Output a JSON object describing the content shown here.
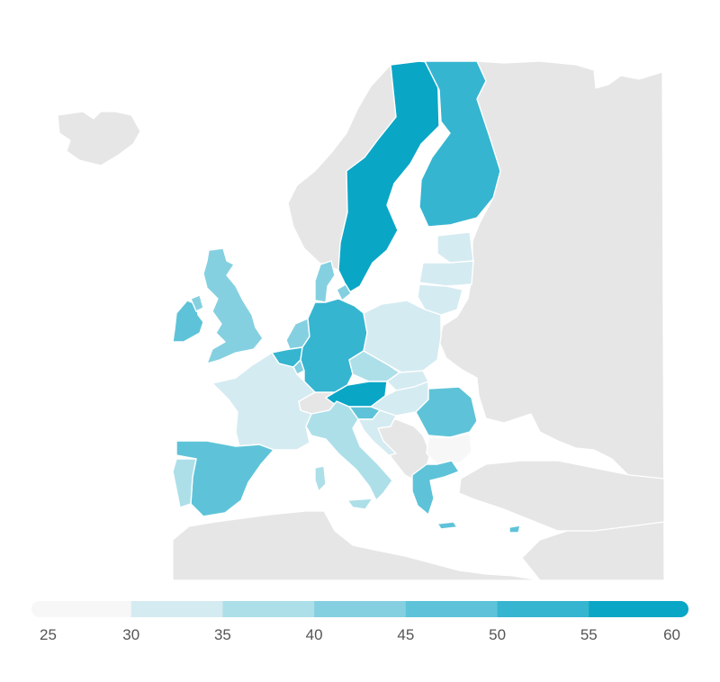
{
  "map": {
    "region": "Europe",
    "background_land_color": "#e6e6e6",
    "border_color": "#ffffff",
    "countries": [
      {
        "name": "Sweden",
        "value": 57
      },
      {
        "name": "Finland",
        "value": 53
      },
      {
        "name": "Norway",
        "value": null
      },
      {
        "name": "Iceland",
        "value": null
      },
      {
        "name": "Estonia",
        "value": 33
      },
      {
        "name": "Latvia",
        "value": 33
      },
      {
        "name": "Lithuania",
        "value": 33
      },
      {
        "name": "Denmark",
        "value": 43
      },
      {
        "name": "Ireland",
        "value": 46
      },
      {
        "name": "United Kingdom",
        "value": 42
      },
      {
        "name": "Netherlands",
        "value": 44
      },
      {
        "name": "Belgium",
        "value": 51
      },
      {
        "name": "Luxembourg",
        "value": 44
      },
      {
        "name": "Germany",
        "value": 51
      },
      {
        "name": "Poland",
        "value": 31
      },
      {
        "name": "France",
        "value": 34
      },
      {
        "name": "Czechia",
        "value": 36
      },
      {
        "name": "Slovakia",
        "value": 34
      },
      {
        "name": "Austria",
        "value": 57
      },
      {
        "name": "Switzerland",
        "value": null
      },
      {
        "name": "Hungary",
        "value": 34
      },
      {
        "name": "Slovenia",
        "value": 48
      },
      {
        "name": "Croatia",
        "value": 31
      },
      {
        "name": "Romania",
        "value": 46
      },
      {
        "name": "Bulgaria",
        "value": 26
      },
      {
        "name": "Italy",
        "value": 38
      },
      {
        "name": "Spain",
        "value": 46
      },
      {
        "name": "Portugal",
        "value": 38
      },
      {
        "name": "Greece",
        "value": 48
      },
      {
        "name": "Malta",
        "value": 40
      },
      {
        "name": "Cyprus",
        "value": 47
      }
    ]
  },
  "legend": {
    "ticks": [
      "25",
      "30",
      "35",
      "40",
      "45",
      "50",
      "55",
      "60"
    ],
    "colors": [
      "#f7f7f7",
      "#d4ebf1",
      "#addfe9",
      "#84d0e0",
      "#5ec3d8",
      "#35b5d0",
      "#0aa6c6"
    ]
  }
}
